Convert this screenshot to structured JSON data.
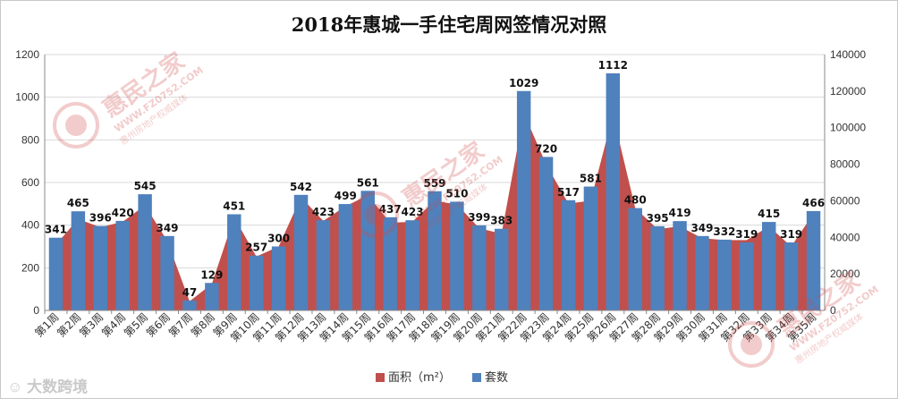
{
  "chart_data": {
    "type": "area+bar",
    "title": "2018年惠城一手住宅周网签情况对照",
    "categories": [
      "第1周",
      "第2周",
      "第3周",
      "第4周",
      "第5周",
      "第6周",
      "第7周",
      "第8周",
      "第9周",
      "第10周",
      "第11周",
      "第12周",
      "第13周",
      "第14周",
      "第15周",
      "第16周",
      "第17周",
      "第18周",
      "第19周",
      "第20周",
      "第21周",
      "第22周",
      "第23周",
      "第24周",
      "第25周",
      "第26周",
      "第27周",
      "第28周",
      "第29周",
      "第30周",
      "第31周",
      "第32周",
      "第33周",
      "第34周",
      "第35周"
    ],
    "series": [
      {
        "name": "面积（m²）",
        "type": "area",
        "axis": "right",
        "color": "#c0504d",
        "values": [
          36000,
          50000,
          45500,
          48500,
          57500,
          38000,
          5000,
          14500,
          51000,
          29500,
          35000,
          62000,
          49000,
          57000,
          63000,
          48000,
          48500,
          60000,
          58000,
          45000,
          42000,
          108000,
          80000,
          58500,
          60000,
          107000,
          56000,
          44500,
          46000,
          39500,
          38500,
          38500,
          46000,
          35000,
          53000
        ]
      },
      {
        "name": "套数",
        "type": "bar",
        "axis": "left",
        "color": "#4f81bd",
        "values": [
          341,
          465,
          396,
          420,
          545,
          349,
          47,
          129,
          451,
          257,
          300,
          542,
          423,
          499,
          561,
          437,
          423,
          559,
          510,
          399,
          383,
          1029,
          720,
          517,
          581,
          1112,
          480,
          395,
          419,
          349,
          332,
          319,
          415,
          319,
          466
        ]
      }
    ],
    "y_left": {
      "min": 0,
      "max": 1200,
      "step": 200,
      "ticks": [
        "0",
        "200",
        "400",
        "600",
        "800",
        "1000",
        "1200"
      ]
    },
    "y_right": {
      "min": 0,
      "max": 140000,
      "step": 20000,
      "ticks": [
        "0",
        "20000",
        "40000",
        "60000",
        "80000",
        "100000",
        "120000",
        "140000"
      ]
    },
    "legend_position": "bottom",
    "grid": true
  },
  "watermark": {
    "brand": "惠民之家",
    "url": "WWW.FZ0752.COM",
    "tagline": "惠州房地产权威媒体"
  },
  "footer_logo": "大数跨境"
}
